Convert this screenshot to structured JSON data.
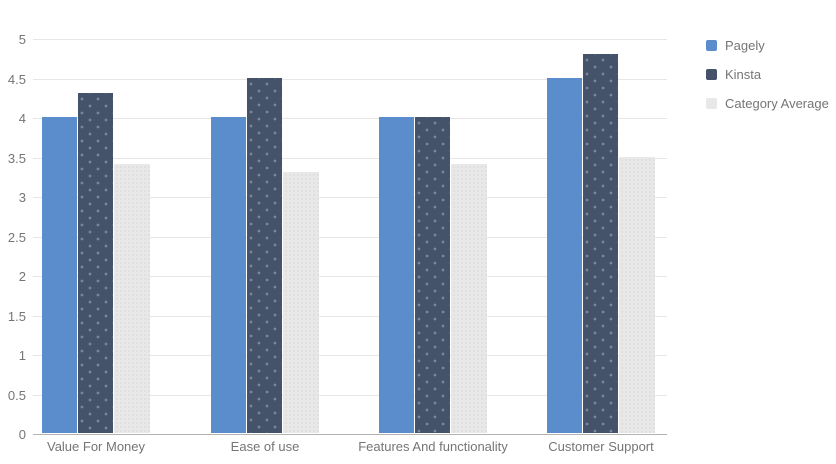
{
  "chart_data": {
    "type": "bar",
    "title": "",
    "categories": [
      "Value For Money",
      "Ease of use",
      "Features And functionality",
      "Customer Support"
    ],
    "series": [
      {
        "name": "Pagely",
        "color": "#5b8ccb",
        "values": [
          4,
          4,
          4,
          4.5
        ]
      },
      {
        "name": "Kinsta",
        "color": "#44526a",
        "values": [
          4.3,
          4.5,
          4,
          4.8
        ]
      },
      {
        "name": "Category Average",
        "color": "#e8e8e8",
        "values": [
          3.4,
          3.3,
          3.4,
          3.5
        ]
      }
    ],
    "ylim": [
      0,
      5
    ],
    "ytick_step": 0.5,
    "y_tick_labels": [
      "0",
      "0.5",
      "1",
      "1.5",
      "2",
      "2.5",
      "3",
      "3.5",
      "4",
      "4.5",
      "5"
    ],
    "xlabel": "",
    "ylabel": "",
    "grid": true,
    "legend_position": "right",
    "style": {
      "text_color": "#757575",
      "gridline_color": "#e6e6e6",
      "axis_line_color": "#b3b3b3",
      "background": "#ffffff"
    }
  }
}
